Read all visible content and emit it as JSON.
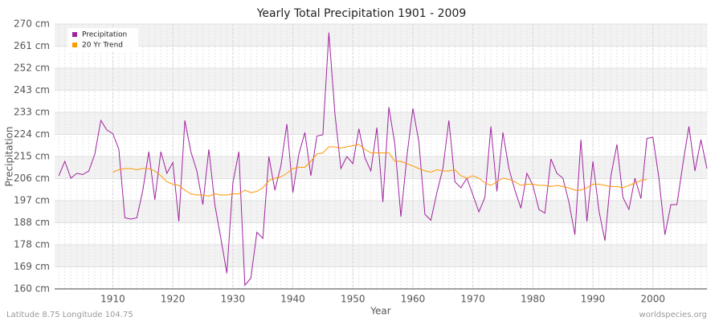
{
  "chart_data": {
    "type": "line",
    "title": "Yearly Total Precipitation 1901 - 2009",
    "x_label": "Year",
    "y_label": "Precipitation",
    "footer_left": "Latitude 8.75 Longitude 104.75",
    "footer_right": "worldspecies.org",
    "x": [
      1901,
      1902,
      1903,
      1904,
      1905,
      1906,
      1907,
      1908,
      1909,
      1910,
      1911,
      1912,
      1913,
      1914,
      1915,
      1916,
      1917,
      1918,
      1919,
      1920,
      1921,
      1922,
      1923,
      1924,
      1925,
      1926,
      1927,
      1928,
      1929,
      1930,
      1931,
      1932,
      1933,
      1934,
      1935,
      1936,
      1937,
      1938,
      1939,
      1940,
      1941,
      1942,
      1943,
      1944,
      1945,
      1946,
      1947,
      1948,
      1949,
      1950,
      1951,
      1952,
      1953,
      1954,
      1955,
      1956,
      1957,
      1958,
      1959,
      1960,
      1961,
      1962,
      1963,
      1964,
      1965,
      1966,
      1967,
      1968,
      1969,
      1970,
      1971,
      1972,
      1973,
      1974,
      1975,
      1976,
      1977,
      1978,
      1979,
      1980,
      1981,
      1982,
      1983,
      1984,
      1985,
      1986,
      1987,
      1988,
      1989,
      1990,
      1991,
      1992,
      1993,
      1994,
      1995,
      1996,
      1997,
      1998,
      1999,
      2000,
      2001,
      2002,
      2003,
      2004,
      2005,
      2006,
      2007,
      2008,
      2009
    ],
    "series": [
      {
        "name": "Precipitation",
        "color": "#a0249f",
        "values": [
          207,
          213,
          206,
          208,
          207.5,
          209,
          216,
          230,
          226,
          224.5,
          218,
          189.5,
          189,
          189.5,
          201,
          217,
          197,
          217,
          208,
          212.5,
          188,
          230,
          217,
          209,
          195,
          218,
          195,
          181,
          166.5,
          204,
          217,
          161.5,
          164.5,
          183.5,
          181,
          215,
          201,
          211,
          228.5,
          200,
          216,
          225,
          207,
          223.5,
          224,
          266.5,
          233,
          210,
          215,
          212,
          226.5,
          214.5,
          209,
          227,
          196,
          235.5,
          220,
          190,
          215,
          235,
          221,
          191,
          188.5,
          200,
          210,
          230,
          204.5,
          202,
          206,
          199,
          192,
          198,
          227.5,
          200.5,
          225,
          210,
          201,
          193.5,
          208,
          203,
          193,
          191.5,
          214,
          208,
          206,
          196,
          182.5,
          222,
          188,
          213,
          192.5,
          180,
          207,
          220,
          198,
          193,
          206,
          197.5,
          222.5,
          223,
          206,
          182.5,
          195,
          195,
          212,
          227.5,
          209,
          222,
          210
        ]
      },
      {
        "name": "20 Yr Trend",
        "color": "#ff9900",
        "values": [
          null,
          null,
          null,
          null,
          null,
          null,
          null,
          null,
          null,
          208.5,
          209.5,
          210,
          210,
          209.5,
          210,
          210,
          209,
          207,
          204.5,
          203.5,
          203,
          201,
          199.5,
          199,
          199,
          198.5,
          199.5,
          199,
          199,
          199.5,
          199.5,
          201,
          200,
          200.5,
          202,
          205,
          206,
          206.5,
          208,
          210,
          210.5,
          210.5,
          213,
          216,
          216.5,
          219,
          219,
          218.5,
          219,
          219.5,
          220,
          218,
          216.5,
          216.5,
          216.5,
          216.5,
          213,
          213,
          212,
          211,
          210,
          209,
          208.5,
          209.5,
          209,
          209,
          209.5,
          207,
          206,
          207,
          206,
          204,
          203,
          204.5,
          206,
          205.5,
          204.5,
          203,
          203.5,
          203.5,
          203,
          203,
          202.5,
          203,
          202.5,
          202,
          201,
          201,
          202,
          203.5,
          203.5,
          203,
          202.5,
          202.5,
          202,
          203,
          204,
          205,
          205.5,
          null,
          null,
          null,
          null,
          null,
          null,
          null,
          null,
          null,
          null
        ]
      }
    ],
    "xlim": [
      1900.3,
      2009
    ],
    "xticks": [
      1910,
      1920,
      1930,
      1940,
      1950,
      1960,
      1970,
      1980,
      1990,
      2000
    ],
    "ylim": [
      160,
      270
    ],
    "yticks": [
      {
        "value": 160,
        "label": "160 cm"
      },
      {
        "value": 169.17,
        "label": "169 cm"
      },
      {
        "value": 178.33,
        "label": "178 cm"
      },
      {
        "value": 187.5,
        "label": "188 cm"
      },
      {
        "value": 196.67,
        "label": "197 cm"
      },
      {
        "value": 205.83,
        "label": "206 cm"
      },
      {
        "value": 215,
        "label": "215 cm"
      },
      {
        "value": 224.17,
        "label": "224 cm"
      },
      {
        "value": 233.33,
        "label": "233 cm"
      },
      {
        "value": 242.5,
        "label": "243 cm"
      },
      {
        "value": 251.67,
        "label": "252 cm"
      },
      {
        "value": 260.83,
        "label": "261 cm"
      },
      {
        "value": 270,
        "label": "270 cm"
      }
    ],
    "grid": true,
    "legend": "top-left"
  }
}
